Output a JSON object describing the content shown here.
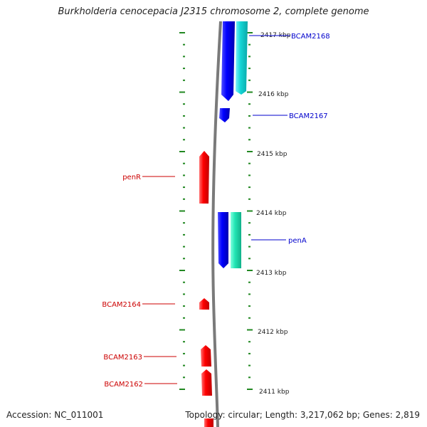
{
  "title": "Burkholderia cenocepacia J2315 chromosome 2, complete genome",
  "accession": "Accession: NC_011001",
  "topology": "Topology: circular; Length: 3,217,062 bp; Genes: 2,819",
  "colors": {
    "reverse": "#ff0000",
    "forward": "#0000ff",
    "forward_alt": "#21e6c8",
    "tick": "#228822",
    "backbone": "#808080"
  },
  "kbp_labels": [
    "2417 kbp",
    "2416 kbp",
    "2415 kbp",
    "2414 kbp",
    "2413 kbp",
    "2412 kbp",
    "2411 kbp"
  ],
  "genes": [
    {
      "id": "BCAM2168",
      "label": "BCAM2168",
      "strand": "forward"
    },
    {
      "id": "BCAM2167",
      "label": "BCAM2167",
      "strand": "forward"
    },
    {
      "id": "penR",
      "label": "penR",
      "strand": "reverse"
    },
    {
      "id": "penA",
      "label": "penA",
      "strand": "forward"
    },
    {
      "id": "BCAM2164",
      "label": "BCAM2164",
      "strand": "reverse"
    },
    {
      "id": "BCAM2163",
      "label": "BCAM2163",
      "strand": "reverse"
    },
    {
      "id": "BCAM2162",
      "label": "BCAM2162",
      "strand": "reverse"
    }
  ]
}
